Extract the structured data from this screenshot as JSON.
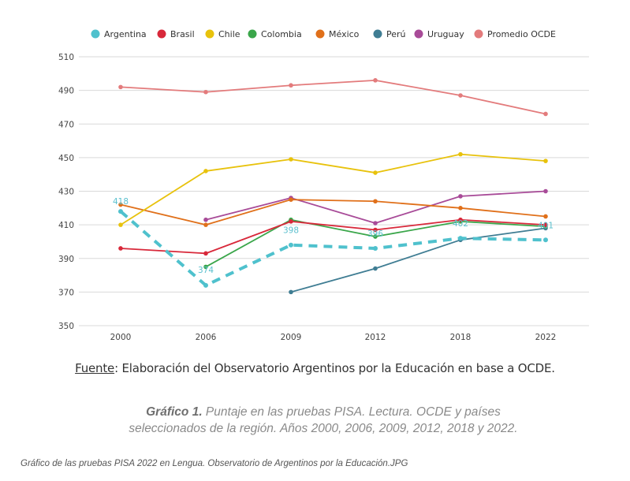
{
  "chart_data": {
    "type": "line",
    "title": "Gráfico 1. Puntaje en las pruebas PISA. Lectura. OCDE y países seleccionados de la región. Años 2000, 2006, 2009, 2012, 2018 y 2022.",
    "xlabel": "",
    "ylabel": "",
    "categories": [
      "2000",
      "2006",
      "2009",
      "2012",
      "2018",
      "2022"
    ],
    "yticks": [
      350,
      370,
      390,
      410,
      430,
      450,
      470,
      490,
      510
    ],
    "ylim": [
      350,
      510
    ],
    "grid": true,
    "legend_position": "top",
    "series": [
      {
        "name": "Argentina",
        "color": "#4fc1cd",
        "dashed": true,
        "values": [
          418,
          374,
          398,
          396,
          402,
          401
        ],
        "labels": [
          "418",
          "374",
          "398",
          "396",
          "402",
          "401"
        ]
      },
      {
        "name": "Brasil",
        "color": "#d8283a",
        "dashed": false,
        "values": [
          396,
          393,
          412,
          407,
          413,
          410
        ]
      },
      {
        "name": "Chile",
        "color": "#e8c20c",
        "dashed": false,
        "values": [
          410,
          442,
          449,
          441,
          452,
          448
        ]
      },
      {
        "name": "Colombia",
        "color": "#3aa64a",
        "dashed": false,
        "values": [
          null,
          385,
          413,
          403,
          412,
          409
        ]
      },
      {
        "name": "México",
        "color": "#e0701a",
        "dashed": false,
        "values": [
          422,
          410,
          425,
          424,
          420,
          415
        ]
      },
      {
        "name": "Perú",
        "color": "#3f7d93",
        "dashed": false,
        "values": [
          null,
          null,
          370,
          384,
          401,
          408
        ]
      },
      {
        "name": "Uruguay",
        "color": "#a84b98",
        "dashed": false,
        "values": [
          null,
          413,
          426,
          411,
          427,
          430
        ]
      },
      {
        "name": "Promedio OCDE",
        "color": "#e37b7c",
        "dashed": false,
        "values": [
          492,
          489,
          493,
          496,
          487,
          476
        ]
      }
    ]
  },
  "source": {
    "label": "Fuente",
    "text": ": Elaboración del Observatorio Argentinos por la Educación en base a OCDE."
  },
  "caption": {
    "bold": "Gráfico 1.",
    "text": " Puntaje en las pruebas PISA. Lectura. OCDE y países seleccionados de la región. Años 2000, 2006, 2009, 2012, 2018 y 2022."
  },
  "filename": "Gráfico de las pruebas PISA 2022 en Lengua. Observatorio de Argentinos por la Educación.JPG"
}
